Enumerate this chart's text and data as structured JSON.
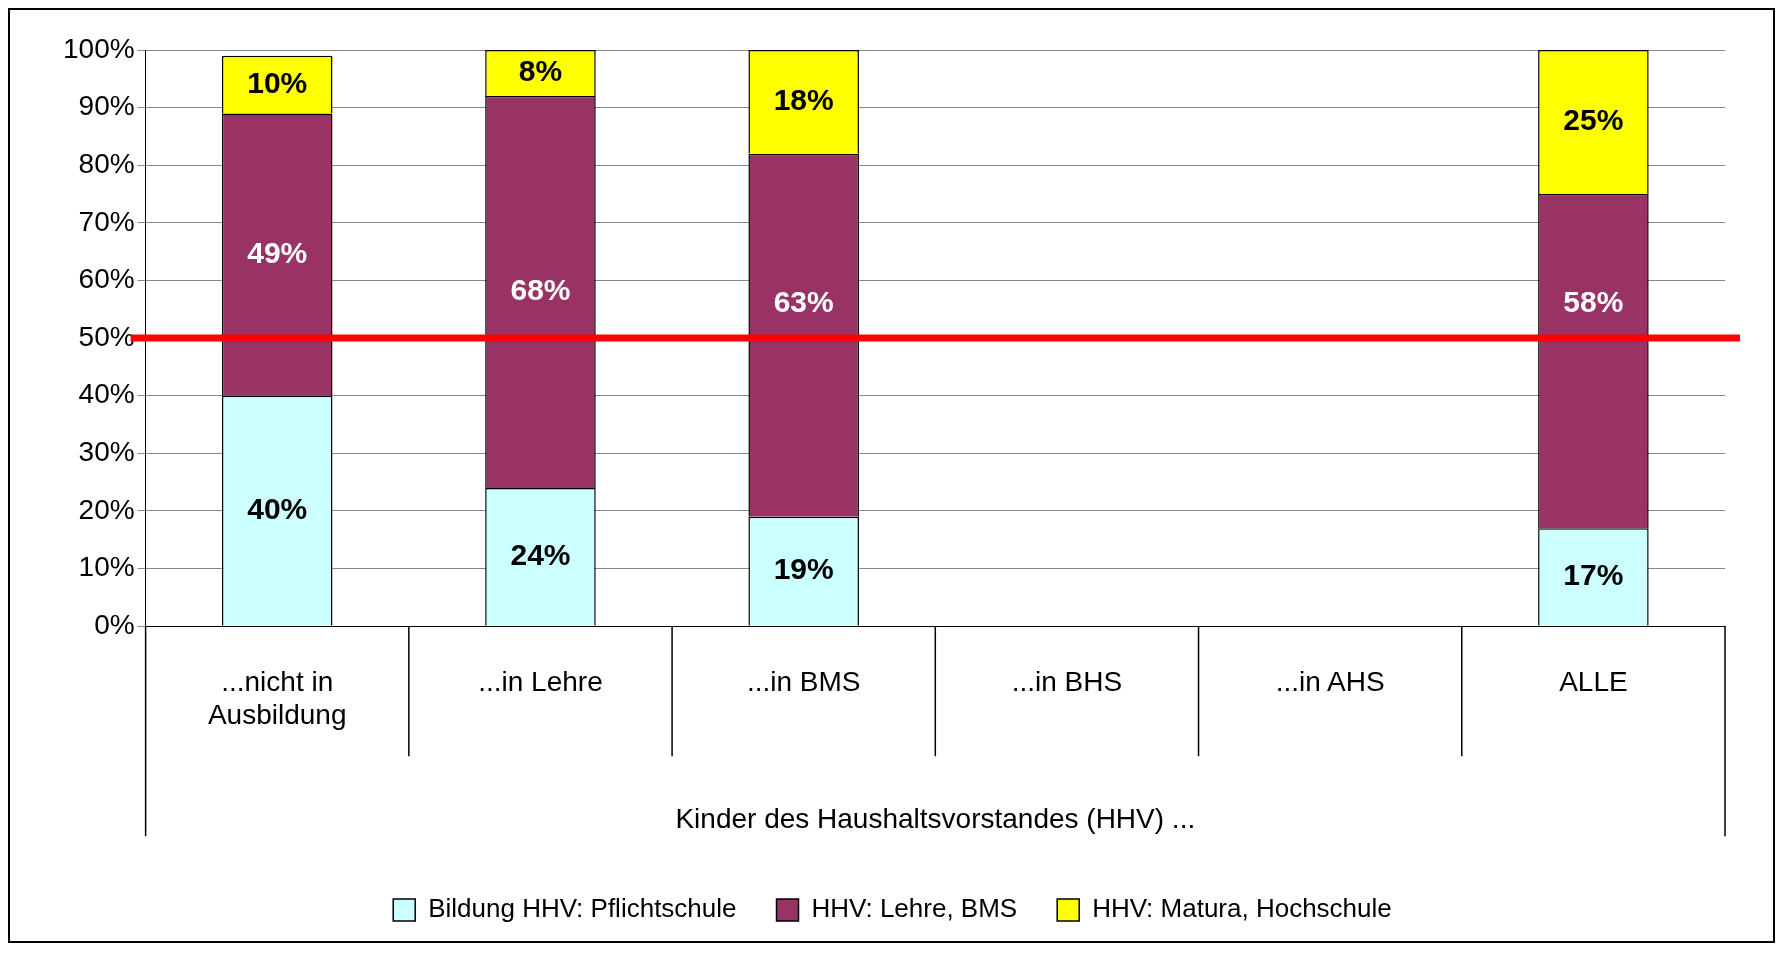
{
  "chart_data": {
    "type": "bar",
    "stacked": true,
    "xlabel": "Kinder des Haushaltsvorstandes (HHV) ...",
    "categories": [
      "...nicht in Ausbildung",
      "...in Lehre",
      "...in BMS",
      "...in BHS",
      "...in AHS",
      "ALLE"
    ],
    "series": [
      {
        "name": "Bildung HHV: Pflichtschule",
        "color": "#ccffff",
        "values": [
          40,
          24,
          19,
          null,
          null,
          17
        ],
        "value_labels": [
          "40%",
          "24%",
          "19%",
          null,
          null,
          "17%"
        ]
      },
      {
        "name": "HHV: Lehre, BMS",
        "color": "#993366",
        "values": [
          49,
          68,
          63,
          null,
          null,
          58
        ],
        "value_labels": [
          "49%",
          "68%",
          "63%",
          null,
          null,
          "58%"
        ]
      },
      {
        "name": "HHV: Matura, Hochschule",
        "color": "#ffff00",
        "values": [
          10,
          8,
          18,
          null,
          null,
          25
        ],
        "value_labels": [
          "10%",
          "8%",
          "18%",
          null,
          null,
          "25%"
        ]
      }
    ],
    "ylim": [
      0,
      100
    ],
    "yticks": [
      {
        "value": 0,
        "label": "0%"
      },
      {
        "value": 10,
        "label": "10%"
      },
      {
        "value": 20,
        "label": "20%"
      },
      {
        "value": 30,
        "label": "30%"
      },
      {
        "value": 40,
        "label": "40%"
      },
      {
        "value": 50,
        "label": "50%"
      },
      {
        "value": 60,
        "label": "60%"
      },
      {
        "value": 70,
        "label": "70%"
      },
      {
        "value": 80,
        "label": "80%"
      },
      {
        "value": 90,
        "label": "90%"
      },
      {
        "value": 100,
        "label": "100%"
      }
    ],
    "grid": "y",
    "legend": "bottom",
    "ref_lines": [
      {
        "axis": "y",
        "value": 50,
        "color": "#ff0000"
      }
    ]
  }
}
